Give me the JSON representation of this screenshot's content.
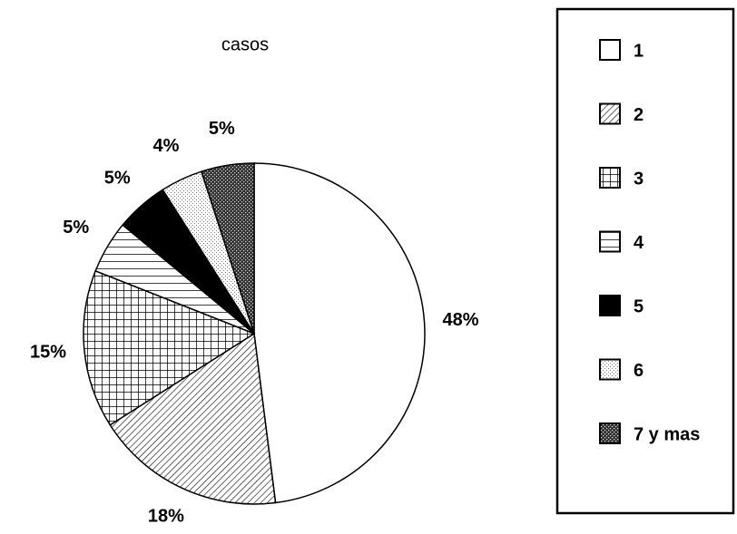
{
  "chart_data": {
    "type": "pie",
    "title": "casos",
    "categories": [
      "1",
      "2",
      "3",
      "4",
      "5",
      "6",
      "7 y mas"
    ],
    "values": [
      48,
      18,
      15,
      5,
      5,
      4,
      5
    ],
    "value_labels": [
      "48%",
      "18%",
      "15%",
      "5%",
      "5%",
      "4%",
      "5%"
    ],
    "legend": "right"
  }
}
